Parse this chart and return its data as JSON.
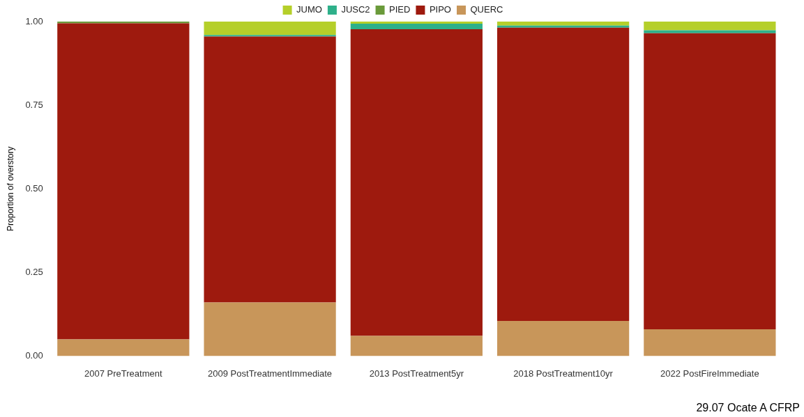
{
  "chart_data": {
    "type": "bar",
    "stacked": true,
    "ylabel": "Proportion of overstory",
    "categories": [
      "2007 PreTreatment",
      "2009 PostTreatmentImmediate",
      "2013 PostTreatment5yr",
      "2018 PostTreatment10yr",
      "2022 PostFireImmediate"
    ],
    "series": [
      {
        "name": "QUERC",
        "color": "#c8965a",
        "values": [
          0.05,
          0.16,
          0.06,
          0.105,
          0.08
        ]
      },
      {
        "name": "PIPO",
        "color": "#9e1a0e",
        "values": [
          0.945,
          0.795,
          0.917,
          0.877,
          0.885
        ]
      },
      {
        "name": "PIED",
        "color": "#6a9a3a",
        "values": [
          0.005,
          0,
          0,
          0,
          0
        ]
      },
      {
        "name": "JUSC2",
        "color": "#2eb08a",
        "values": [
          0,
          0.005,
          0.017,
          0.006,
          0.009
        ]
      },
      {
        "name": "JUMO",
        "color": "#b5cf2a",
        "values": [
          0,
          0.04,
          0.006,
          0.012,
          0.026
        ]
      }
    ],
    "ylim": [
      0,
      1
    ],
    "yticks": [
      {
        "value": 0,
        "label": "0.00"
      },
      {
        "value": 0.25,
        "label": "0.25"
      },
      {
        "value": 0.5,
        "label": "0.50"
      },
      {
        "value": 0.75,
        "label": "0.75"
      },
      {
        "value": 1,
        "label": "1.00"
      }
    ],
    "grid": false,
    "legend": "top",
    "annotations": [
      "29.07 Ocate A CFRP"
    ]
  }
}
